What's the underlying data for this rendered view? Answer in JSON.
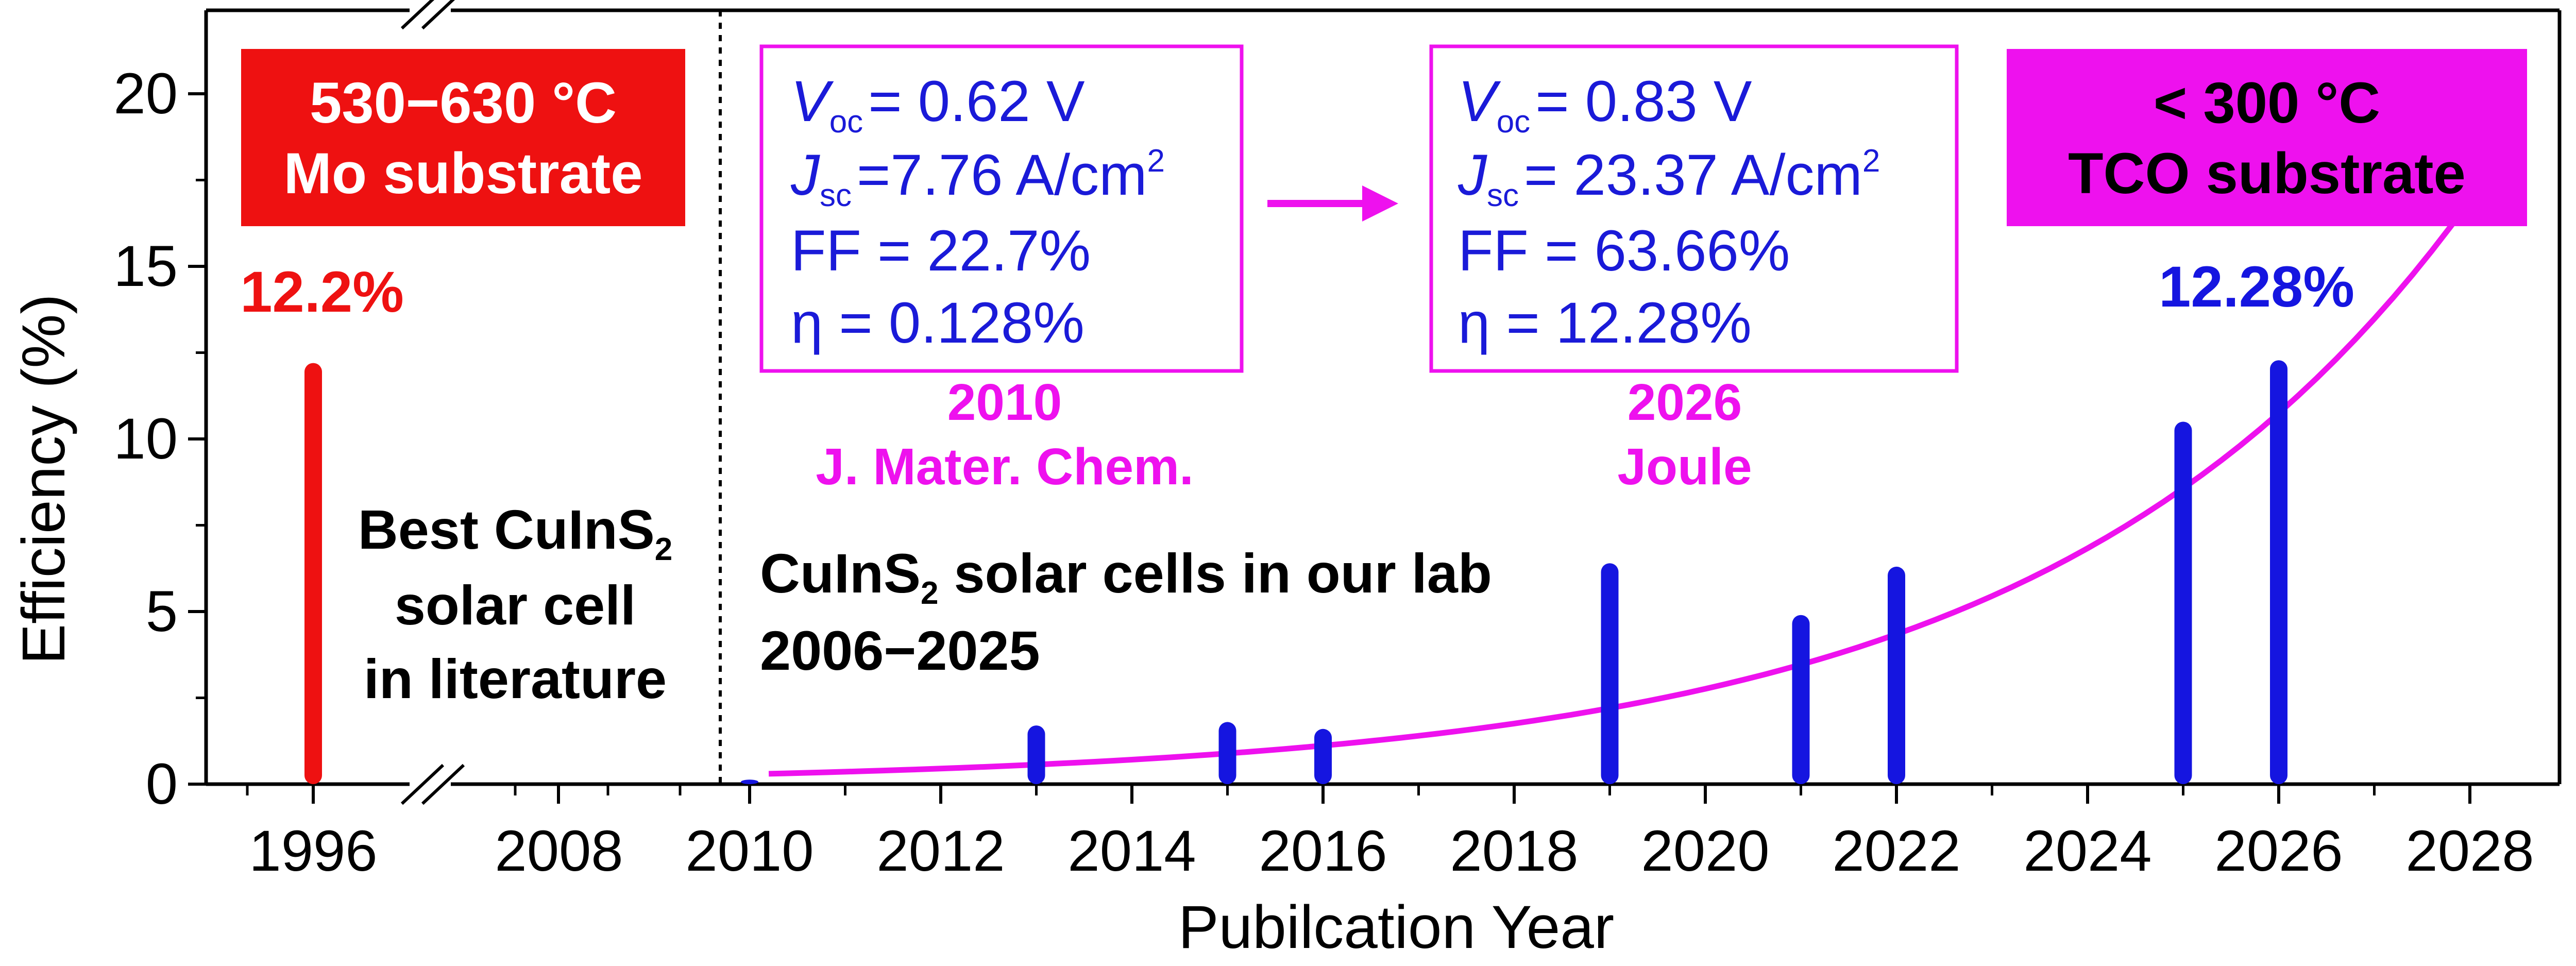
{
  "chart_data": {
    "type": "bar",
    "xlabel": "Pubilcation Year",
    "ylabel": "Efficiency (%)",
    "ylim": [
      0,
      22
    ],
    "yticks": [
      "0",
      "5",
      "10",
      "15",
      "20"
    ],
    "xticks": [
      "1996",
      "2008",
      "2010",
      "2012",
      "2014",
      "2016",
      "2018",
      "2020",
      "2022",
      "2024",
      "2026",
      "2028"
    ],
    "axis_break": "between 1996 and 2008",
    "series": [
      {
        "name": "Best CuInS2 solar cell in literature",
        "color": "#ee1111",
        "points": [
          {
            "x": 1996,
            "y": 12.2
          }
        ]
      },
      {
        "name": "CuInS2 solar cells in our lab 2006–2025",
        "color": "#1515e0",
        "points": [
          {
            "x": 2010,
            "y": 0.13
          },
          {
            "x": 2013,
            "y": 1.7
          },
          {
            "x": 2015,
            "y": 1.8
          },
          {
            "x": 2016,
            "y": 1.6
          },
          {
            "x": 2019,
            "y": 6.4
          },
          {
            "x": 2021,
            "y": 4.9
          },
          {
            "x": 2022,
            "y": 6.3
          },
          {
            "x": 2025,
            "y": 10.5
          },
          {
            "x": 2026,
            "y": 12.28
          }
        ]
      }
    ],
    "trend_color": "#ee11ee",
    "left_box": {
      "line1": "530−630 °C",
      "line2": "Mo substrate",
      "color": "#ee1111"
    },
    "right_box": {
      "line1": "< 300 °C",
      "line2": "TCO substrate",
      "color": "#ee11ee"
    },
    "label_1996": "12.2%",
    "label_2026": "12.28%",
    "left_text": {
      "line1_main": "Best CuInS",
      "line1_sub": "2",
      "line2": "solar cell",
      "line3": "in literature"
    },
    "lab_text": {
      "line1_main": "CuInS",
      "line1_sub": "2",
      "line1_rest": " solar cells in our lab",
      "line2": "2006−2025"
    },
    "param_box_1": {
      "voc_sym": "V",
      "voc_sub": "oc",
      "voc_val": "= 0.62 V",
      "jsc_sym": "J",
      "jsc_sub": "sc",
      "jsc_val": "=7.76 A/cm",
      "jsc_sup": "2",
      "ff": "FF = 22.7%",
      "eta": "η = 0.128%",
      "year": "2010",
      "journal": "J. Mater. Chem."
    },
    "param_box_2": {
      "voc_sym": "V",
      "voc_sub": "oc",
      "voc_val": "= 0.83 V",
      "jsc_sym": "J",
      "jsc_sub": "sc",
      "jsc_val": "= 23.37 A/cm",
      "jsc_sup": "2",
      "ff": "FF = 63.66%",
      "eta": "η = 12.28%",
      "year": "2026",
      "journal": "Joule"
    }
  }
}
